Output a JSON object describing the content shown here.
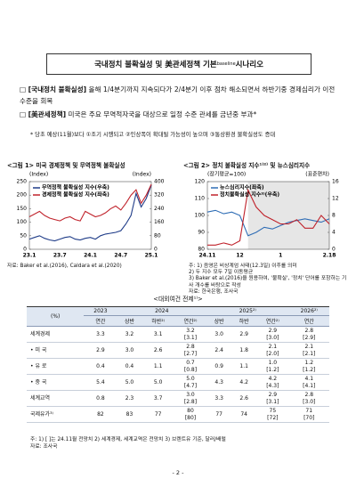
{
  "header": {
    "title": "국내정치 불확실성 및 美관세정책 기본",
    "title_sub": "baseline",
    "title_end": "시나리오"
  },
  "bullets": [
    {
      "marker": "□",
      "label": "[국내정치 불확실성]",
      "text": "올해 1/4분기까지 지속되다가 2/4분기 이후 점차 해소되면서 하반기중 경제심리가 이전 수준을 회복"
    },
    {
      "marker": "□",
      "label": "[美관세정책]",
      "text": "미국은 주요 무역적자국을 대상으로 일정 수준 관세를 금년중 부과*"
    }
  ],
  "note": "* 당초 예상(11월)보다 ①조기 시행되고 ②인상폭이 확대될 가능성이 높으며 ③통상환경 불확실성도 증대",
  "figures": [
    {
      "type": "line",
      "title": "<그림 1> 미국 경제정책 및 무역정책 불확실성",
      "y_label": "(Index)",
      "y2_label": "(Index)",
      "categories": [
        "23.1",
        null,
        null,
        null,
        null,
        null,
        "23.7",
        null,
        null,
        null,
        null,
        null,
        "24.1",
        null,
        null,
        null,
        null,
        null,
        "24.7",
        null,
        null,
        null,
        null,
        null,
        "25.1"
      ],
      "series": [
        {
          "name": "무역정책 불확실성 지수(우축)",
          "color": "#1f3c88",
          "axis": "y2",
          "values": [
            60,
            70,
            80,
            65,
            55,
            50,
            60,
            70,
            75,
            60,
            55,
            65,
            70,
            60,
            80,
            90,
            95,
            100,
            110,
            150,
            200,
            330,
            250,
            300,
            380
          ]
        },
        {
          "name": "경제정책 불확실성 지수(좌축)",
          "color": "#c0222b",
          "values": [
            120,
            130,
            140,
            125,
            115,
            110,
            105,
            115,
            120,
            110,
            105,
            140,
            130,
            120,
            125,
            135,
            150,
            160,
            145,
            170,
            200,
            220,
            170,
            200,
            240
          ]
        }
      ],
      "ylim": [
        0,
        250
      ],
      "yticks": [
        0,
        50,
        100,
        150,
        200,
        250
      ],
      "y2lim": [
        0,
        400
      ],
      "y2ticks": [
        0,
        80,
        160,
        240,
        320,
        400
      ],
      "notes": [
        "자료: Baker et al.(2016), Caldara et al.(2020)"
      ]
    },
    {
      "type": "line",
      "title": "<그림 2> 정치 불확실성 지수¹⁾²⁾ 및 뉴스심리지수",
      "y_label": "(장기평균=100)",
      "y2_label": "(표준편차)",
      "categories": [
        "24.11",
        null,
        null,
        null,
        "12",
        null,
        null,
        null,
        null,
        "1",
        null,
        null,
        null,
        null,
        null,
        "2.18"
      ],
      "series": [
        {
          "name": "뉴스심리지수(좌축)",
          "color": "#2f6db5",
          "values": [
            102,
            103,
            101,
            102,
            100,
            88,
            90,
            93,
            92,
            94,
            96,
            97,
            98,
            97,
            96,
            98
          ]
        },
        {
          "name": "정치불확실성 지수³⁾(우축)",
          "color": "#c0222b",
          "axis": "y2",
          "values": [
            1,
            1,
            1.5,
            1,
            2,
            14,
            10,
            8,
            7,
            6,
            6,
            7,
            5,
            5,
            8,
            6
          ]
        }
      ],
      "ylim": [
        80,
        120
      ],
      "yticks": [
        80,
        90,
        100,
        110,
        120
      ],
      "y2lim": [
        0,
        16
      ],
      "y2ticks": [
        0,
        4,
        8,
        12,
        16
      ],
      "notes": [
        "주: 1) 음영은 비상계엄 사태(12.3일) 이후를 의미",
        "2) 두 지수 모두 7일 이동평균",
        "3) Baker et al.(2016)을 원용하여, '불확실', '정치' 단어를 포함하는 기사 개수를 바탕으로 작성",
        "자료: 한국은행, 조사국"
      ]
    }
  ],
  "table": {
    "title": "<대외여건 전제¹⁾>",
    "unit": "(%)",
    "years": [
      "2023",
      "2024",
      "2025²⁾",
      "2026²⁾"
    ],
    "periods": [
      "연간",
      "상반",
      "하반²⁾",
      "연간²⁾",
      "상반",
      "하반",
      "연간²⁾",
      "연간"
    ],
    "rows": [
      {
        "label": "세계경제",
        "values": [
          "3.3",
          "3.2",
          "3.1",
          "3.2",
          "3.0",
          "2.9",
          "2.9",
          "2.8"
        ],
        "prev": [
          null,
          null,
          null,
          "[3.1]",
          null,
          null,
          "[3.0]",
          "[2.9]"
        ]
      },
      {
        "label": "• 미 국",
        "values": [
          "2.9",
          "3.0",
          "2.6",
          "2.8",
          "2.4",
          "1.8",
          "2.1",
          "2.1"
        ],
        "prev": [
          null,
          null,
          null,
          "[2.7]",
          null,
          null,
          "[2.0]",
          "[2.1]"
        ]
      },
      {
        "label": "• 유 로",
        "values": [
          "0.4",
          "0.4",
          "1.1",
          "0.7",
          "0.9",
          "1.1",
          "1.0",
          "1.2"
        ],
        "prev": [
          null,
          null,
          null,
          "[0.8]",
          null,
          null,
          "[1.2]",
          "[1.2]"
        ]
      },
      {
        "label": "• 중 국",
        "values": [
          "5.4",
          "5.0",
          "5.0",
          "5.0",
          "4.3",
          "4.2",
          "4.2",
          "4.1"
        ],
        "prev": [
          null,
          null,
          null,
          "[4.7]",
          null,
          null,
          "[4.3]",
          "[4.1]"
        ]
      },
      {
        "label": "세계교역",
        "values": [
          "0.8",
          "2.3",
          "3.7",
          "3.0",
          "3.3",
          "2.6",
          "2.9",
          "2.8"
        ],
        "prev": [
          null,
          null,
          null,
          "[2.8]",
          null,
          null,
          "[3.1]",
          "[3.0]"
        ]
      },
      {
        "label": "국제유가³⁾",
        "values": [
          "82",
          "83",
          "77",
          "80",
          "77",
          "74",
          "75",
          "71"
        ],
        "prev": [
          null,
          null,
          null,
          "[80]",
          null,
          null,
          "[72]",
          "[70]"
        ]
      }
    ],
    "notes": [
      "주: 1) [ ]는 24.11월 전망치 2) 세계경제, 세계교역은 전망치 3) 브렌트유 기준, 달러/배럴",
      "자료: 조사국"
    ]
  },
  "footer": {
    "page": "- 2 -"
  }
}
